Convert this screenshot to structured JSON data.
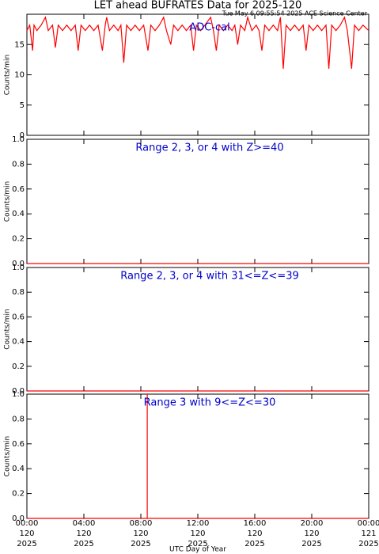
{
  "chart_data": [
    {
      "type": "line",
      "title": "LET ahead BUFRATES Data for 2025-120",
      "subtitle": "Tue May  6 09:55:54 2025 ACE Science Center",
      "annotation": "ADC-cal",
      "ylabel": "Counts/min",
      "ylim": [
        0,
        20
      ],
      "yticks": [
        0,
        5,
        10,
        15
      ],
      "xlim": [
        0,
        24
      ],
      "series": [
        {
          "color": "#ff0000",
          "x": [
            0,
            0.2,
            0.4,
            0.5,
            0.7,
            1.0,
            1.3,
            1.5,
            1.8,
            2.0,
            2.2,
            2.5,
            2.8,
            3.1,
            3.4,
            3.6,
            3.8,
            4.1,
            4.4,
            4.7,
            5.0,
            5.3,
            5.5,
            5.6,
            5.8,
            6.1,
            6.4,
            6.6,
            6.8,
            7.0,
            7.3,
            7.6,
            7.9,
            8.2,
            8.5,
            8.7,
            9.0,
            9.3,
            9.6,
            9.8,
            10.1,
            10.3,
            10.6,
            10.9,
            11.2,
            11.5,
            11.7,
            11.9,
            12.2,
            12.5,
            12.9,
            13.1,
            13.3,
            13.5,
            13.8,
            14.1,
            14.4,
            14.6,
            14.8,
            15.0,
            15.3,
            15.5,
            15.8,
            16.1,
            16.3,
            16.5,
            16.7,
            17.0,
            17.3,
            17.6,
            17.8,
            18.0,
            18.2,
            18.5,
            18.8,
            19.1,
            19.4,
            19.6,
            19.8,
            20.1,
            20.4,
            20.7,
            21.0,
            21.2,
            21.4,
            21.7,
            22.0,
            22.3,
            22.5,
            22.8,
            23.0,
            23.3,
            23.6,
            24.0
          ],
          "values": [
            17.3,
            18.2,
            14,
            18.2,
            17.3,
            18.2,
            19.5,
            17.3,
            18.2,
            14.5,
            18.2,
            17.3,
            18.2,
            17.3,
            18.2,
            14,
            18.2,
            17.3,
            18.2,
            17.3,
            18.2,
            14,
            18.2,
            19.5,
            17.3,
            18.2,
            17.3,
            18.2,
            12,
            18.2,
            17.3,
            18.2,
            17.3,
            18.2,
            14,
            18.2,
            17.3,
            18.2,
            19.5,
            17.3,
            15,
            18.2,
            17.3,
            18.2,
            17.3,
            18.2,
            14,
            18.2,
            17.3,
            18.2,
            19.5,
            17.3,
            14,
            18.2,
            17.3,
            18.2,
            17.3,
            18.2,
            15,
            18.2,
            17.3,
            19.5,
            17.3,
            18.2,
            17.3,
            14,
            18.2,
            17.3,
            18.2,
            17.3,
            19.5,
            11,
            18.2,
            17.3,
            18.2,
            17.3,
            18.2,
            14,
            18.2,
            17.3,
            18.2,
            17.3,
            18.2,
            11,
            18.2,
            17.3,
            18.2,
            19.5,
            17.3,
            11,
            18.2,
            17.3,
            18.2,
            17.3
          ]
        }
      ]
    },
    {
      "type": "line",
      "annotation": "Range 2, 3, or 4 with Z>=40",
      "ylabel": "Counts/min",
      "ylim": [
        0,
        1
      ],
      "xlim": [
        0,
        24
      ],
      "yticks": [
        {
          "value": 0,
          "label": "0.0"
        },
        0.2,
        0.4,
        0.6,
        0.8,
        {
          "value": 1,
          "label": "1.0"
        }
      ],
      "series": [
        {
          "color": "#ff0000",
          "x": [
            0,
            24
          ],
          "values": [
            0,
            0
          ]
        }
      ]
    },
    {
      "type": "line",
      "annotation": "Range 2, 3, or 4 with 31<=Z<=39",
      "ylabel": "Counts/min",
      "ylim": [
        0,
        1
      ],
      "xlim": [
        0,
        24
      ],
      "yticks": [
        {
          "value": 0,
          "label": "0.0"
        },
        0.2,
        0.4,
        0.6,
        0.8,
        {
          "value": 1,
          "label": "1.0"
        }
      ],
      "series": [
        {
          "color": "#ff0000",
          "x": [
            0,
            24
          ],
          "values": [
            0,
            0
          ]
        }
      ]
    },
    {
      "type": "line",
      "annotation": "Range 3 with 9<=Z<=30",
      "ylabel": "Counts/min",
      "ylim": [
        0,
        1
      ],
      "xlim": [
        0,
        24
      ],
      "yticks": [
        {
          "value": 0,
          "label": "0.0"
        },
        0.2,
        0.4,
        0.6,
        0.8,
        {
          "value": 1,
          "label": "1.0"
        }
      ],
      "series": [
        {
          "color": "#ff0000",
          "x": [
            0,
            8.45,
            8.45,
            8.45,
            24
          ],
          "values": [
            0,
            0,
            1,
            0,
            0
          ]
        }
      ],
      "xlabel": "UTC Day of Year",
      "xticks": [
        {
          "value": 0,
          "label": [
            "00:00",
            "120",
            "2025"
          ]
        },
        {
          "value": 4,
          "label": [
            "04:00",
            "120",
            "2025"
          ]
        },
        {
          "value": 8,
          "label": [
            "08:00",
            "120",
            "2025"
          ]
        },
        {
          "value": 12,
          "label": [
            "12:00",
            "120",
            "2025"
          ]
        },
        {
          "value": 16,
          "label": [
            "16:00",
            "120",
            "2025"
          ]
        },
        {
          "value": 20,
          "label": [
            "20:00",
            "120",
            "2025"
          ]
        },
        {
          "value": 24,
          "label": [
            "00:00",
            "121",
            "2025"
          ]
        }
      ]
    }
  ]
}
